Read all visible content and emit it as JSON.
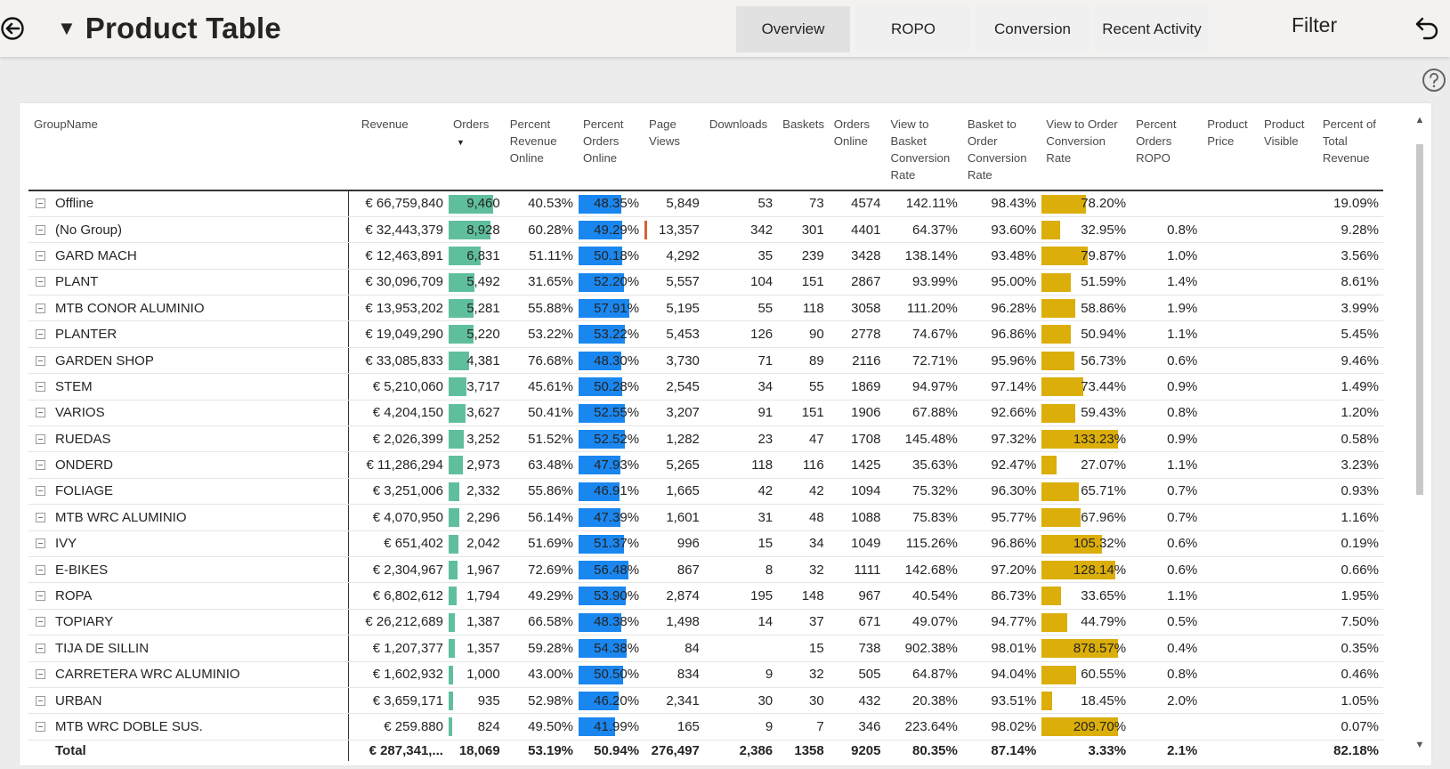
{
  "header": {
    "title": "Product Table",
    "tabs": [
      {
        "label": "Overview",
        "active": true
      },
      {
        "label": "ROPO",
        "active": false
      },
      {
        "label": "Conversion",
        "active": false
      },
      {
        "label": "Recent Activity",
        "active": false
      }
    ],
    "filter_label": "Filter"
  },
  "icons": {
    "back": "back-arrow-circle-icon",
    "title_caret": "caret-down-icon",
    "undo": "undo-arrow-icon",
    "help": "help-circle-icon"
  },
  "colors": {
    "orders_bar": "#5fbf9c",
    "percent_orders_online_bar": "#1a87f0",
    "view_to_order_bar": "#dcae0a",
    "page_views_bar": "#d2643a"
  },
  "table": {
    "columns": [
      "GroupName",
      "Revenue",
      "Orders",
      "Percent Revenue Online",
      "Percent Orders Online",
      "Page Views",
      "Downloads",
      "Baskets",
      "Orders Online",
      "View to Basket Conversion Rate",
      "Basket to Order Conversion Rate",
      "View to Order Conversion Rate",
      "Percent Orders ROPO",
      "Product Price",
      "Product Visible",
      "Percent of Total Revenue"
    ],
    "rows": [
      {
        "name": "Offline",
        "revenue": "€ 66,759,840",
        "orders": "9,460",
        "orders_val": 9460,
        "pro": "40.53%",
        "poo": "48.35%",
        "poo_val": 48.35,
        "pv": "5,849",
        "dl": "53",
        "bk": "73",
        "oo": "4574",
        "vtb": "142.11%",
        "bto": "98.43%",
        "vto": "78.20%",
        "vto_val": 78.2,
        "ropo": "",
        "price": "",
        "visible": "",
        "ptr": "19.09%"
      },
      {
        "name": "(No Group)",
        "revenue": "€ 32,443,379",
        "orders": "8,928",
        "orders_val": 8928,
        "pro": "60.28%",
        "poo": "49.29%",
        "poo_val": 49.29,
        "pv": "13,357",
        "pv_flag": true,
        "dl": "342",
        "bk": "301",
        "oo": "4401",
        "vtb": "64.37%",
        "bto": "93.60%",
        "vto": "32.95%",
        "vto_val": 32.95,
        "ropo": "0.8%",
        "price": "",
        "visible": "",
        "ptr": "9.28%"
      },
      {
        "name": "GARD MACH",
        "revenue": "€ 12,463,891",
        "orders": "6,831",
        "orders_val": 6831,
        "pro": "51.11%",
        "poo": "50.18%",
        "poo_val": 50.18,
        "pv": "4,292",
        "dl": "35",
        "bk": "239",
        "oo": "3428",
        "vtb": "138.14%",
        "bto": "93.48%",
        "vto": "79.87%",
        "vto_val": 79.87,
        "ropo": "1.0%",
        "price": "",
        "visible": "",
        "ptr": "3.56%"
      },
      {
        "name": "PLANT",
        "revenue": "€ 30,096,709",
        "orders": "5,492",
        "orders_val": 5492,
        "pro": "31.65%",
        "poo": "52.20%",
        "poo_val": 52.2,
        "pv": "5,557",
        "dl": "104",
        "bk": "151",
        "oo": "2867",
        "vtb": "93.99%",
        "bto": "95.00%",
        "vto": "51.59%",
        "vto_val": 51.59,
        "ropo": "1.4%",
        "price": "",
        "visible": "",
        "ptr": "8.61%"
      },
      {
        "name": "MTB CONOR ALUMINIO",
        "revenue": "€ 13,953,202",
        "orders": "5,281",
        "orders_val": 5281,
        "pro": "55.88%",
        "poo": "57.91%",
        "poo_val": 57.91,
        "pv": "5,195",
        "dl": "55",
        "bk": "118",
        "oo": "3058",
        "vtb": "111.20%",
        "bto": "96.28%",
        "vto": "58.86%",
        "vto_val": 58.86,
        "ropo": "1.9%",
        "price": "",
        "visible": "",
        "ptr": "3.99%"
      },
      {
        "name": "PLANTER",
        "revenue": "€ 19,049,290",
        "orders": "5,220",
        "orders_val": 5220,
        "pro": "53.22%",
        "poo": "53.22%",
        "poo_val": 53.22,
        "pv": "5,453",
        "dl": "126",
        "bk": "90",
        "oo": "2778",
        "vtb": "74.67%",
        "bto": "96.86%",
        "vto": "50.94%",
        "vto_val": 50.94,
        "ropo": "1.1%",
        "price": "",
        "visible": "",
        "ptr": "5.45%"
      },
      {
        "name": "GARDEN SHOP",
        "revenue": "€ 33,085,833",
        "orders": "4,381",
        "orders_val": 4381,
        "pro": "76.68%",
        "poo": "48.30%",
        "poo_val": 48.3,
        "pv": "3,730",
        "dl": "71",
        "bk": "89",
        "oo": "2116",
        "vtb": "72.71%",
        "bto": "95.96%",
        "vto": "56.73%",
        "vto_val": 56.73,
        "ropo": "0.6%",
        "price": "",
        "visible": "",
        "ptr": "9.46%"
      },
      {
        "name": "STEM",
        "revenue": "€ 5,210,060",
        "orders": "3,717",
        "orders_val": 3717,
        "pro": "45.61%",
        "poo": "50.28%",
        "poo_val": 50.28,
        "pv": "2,545",
        "dl": "34",
        "bk": "55",
        "oo": "1869",
        "vtb": "94.97%",
        "bto": "97.14%",
        "vto": "73.44%",
        "vto_val": 73.44,
        "ropo": "0.9%",
        "price": "",
        "visible": "",
        "ptr": "1.49%"
      },
      {
        "name": "VARIOS",
        "revenue": "€ 4,204,150",
        "orders": "3,627",
        "orders_val": 3627,
        "pro": "50.41%",
        "poo": "52.55%",
        "poo_val": 52.55,
        "pv": "3,207",
        "dl": "91",
        "bk": "151",
        "oo": "1906",
        "vtb": "67.88%",
        "bto": "92.66%",
        "vto": "59.43%",
        "vto_val": 59.43,
        "ropo": "0.8%",
        "price": "",
        "visible": "",
        "ptr": "1.20%"
      },
      {
        "name": "RUEDAS",
        "revenue": "€ 2,026,399",
        "orders": "3,252",
        "orders_val": 3252,
        "pro": "51.52%",
        "poo": "52.52%",
        "poo_val": 52.52,
        "pv": "1,282",
        "dl": "23",
        "bk": "47",
        "oo": "1708",
        "vtb": "145.48%",
        "bto": "97.32%",
        "vto": "133.23%",
        "vto_val": 133.23,
        "ropo": "0.9%",
        "price": "",
        "visible": "",
        "ptr": "0.58%"
      },
      {
        "name": "ONDERD",
        "revenue": "€ 11,286,294",
        "orders": "2,973",
        "orders_val": 2973,
        "pro": "63.48%",
        "poo": "47.93%",
        "poo_val": 47.93,
        "pv": "5,265",
        "dl": "118",
        "bk": "116",
        "oo": "1425",
        "vtb": "35.63%",
        "bto": "92.47%",
        "vto": "27.07%",
        "vto_val": 27.07,
        "ropo": "1.1%",
        "price": "",
        "visible": "",
        "ptr": "3.23%"
      },
      {
        "name": "FOLIAGE",
        "revenue": "€ 3,251,006",
        "orders": "2,332",
        "orders_val": 2332,
        "pro": "55.86%",
        "poo": "46.91%",
        "poo_val": 46.91,
        "pv": "1,665",
        "dl": "42",
        "bk": "42",
        "oo": "1094",
        "vtb": "75.32%",
        "bto": "96.30%",
        "vto": "65.71%",
        "vto_val": 65.71,
        "ropo": "0.7%",
        "price": "",
        "visible": "",
        "ptr": "0.93%"
      },
      {
        "name": "MTB WRC ALUMINIO",
        "revenue": "€ 4,070,950",
        "orders": "2,296",
        "orders_val": 2296,
        "pro": "56.14%",
        "poo": "47.39%",
        "poo_val": 47.39,
        "pv": "1,601",
        "dl": "31",
        "bk": "48",
        "oo": "1088",
        "vtb": "75.83%",
        "bto": "95.77%",
        "vto": "67.96%",
        "vto_val": 67.96,
        "ropo": "0.7%",
        "price": "",
        "visible": "",
        "ptr": "1.16%"
      },
      {
        "name": "IVY",
        "revenue": "€ 651,402",
        "orders": "2,042",
        "orders_val": 2042,
        "pro": "51.69%",
        "poo": "51.37%",
        "poo_val": 51.37,
        "pv": "996",
        "dl": "15",
        "bk": "34",
        "oo": "1049",
        "vtb": "115.26%",
        "bto": "96.86%",
        "vto": "105.32%",
        "vto_val": 105.32,
        "ropo": "0.6%",
        "price": "",
        "visible": "",
        "ptr": "0.19%"
      },
      {
        "name": "E-BIKES",
        "revenue": "€ 2,304,967",
        "orders": "1,967",
        "orders_val": 1967,
        "pro": "72.69%",
        "poo": "56.48%",
        "poo_val": 56.48,
        "pv": "867",
        "dl": "8",
        "bk": "32",
        "oo": "1111",
        "vtb": "142.68%",
        "bto": "97.20%",
        "vto": "128.14%",
        "vto_val": 128.14,
        "ropo": "0.6%",
        "price": "",
        "visible": "",
        "ptr": "0.66%"
      },
      {
        "name": "ROPA",
        "revenue": "€ 6,802,612",
        "orders": "1,794",
        "orders_val": 1794,
        "pro": "49.29%",
        "poo": "53.90%",
        "poo_val": 53.9,
        "pv": "2,874",
        "dl": "195",
        "bk": "148",
        "oo": "967",
        "vtb": "40.54%",
        "bto": "86.73%",
        "vto": "33.65%",
        "vto_val": 33.65,
        "ropo": "1.1%",
        "price": "",
        "visible": "",
        "ptr": "1.95%"
      },
      {
        "name": "TOPIARY",
        "revenue": "€ 26,212,689",
        "orders": "1,387",
        "orders_val": 1387,
        "pro": "66.58%",
        "poo": "48.38%",
        "poo_val": 48.38,
        "pv": "1,498",
        "dl": "14",
        "bk": "37",
        "oo": "671",
        "vtb": "49.07%",
        "bto": "94.77%",
        "vto": "44.79%",
        "vto_val": 44.79,
        "ropo": "0.5%",
        "price": "",
        "visible": "",
        "ptr": "7.50%"
      },
      {
        "name": "TIJA DE SILLIN",
        "revenue": "€ 1,207,377",
        "orders": "1,357",
        "orders_val": 1357,
        "pro": "59.28%",
        "poo": "54.38%",
        "poo_val": 54.38,
        "pv": "84",
        "dl": "",
        "bk": "15",
        "oo": "738",
        "vtb": "902.38%",
        "bto": "98.01%",
        "vto": "878.57%",
        "vto_val": 878.57,
        "ropo": "0.4%",
        "price": "",
        "visible": "",
        "ptr": "0.35%"
      },
      {
        "name": "CARRETERA WRC ALUMINIO",
        "revenue": "€ 1,602,932",
        "orders": "1,000",
        "orders_val": 1000,
        "pro": "43.00%",
        "poo": "50.50%",
        "poo_val": 50.5,
        "pv": "834",
        "dl": "9",
        "bk": "32",
        "oo": "505",
        "vtb": "64.87%",
        "bto": "94.04%",
        "vto": "60.55%",
        "vto_val": 60.55,
        "ropo": "0.8%",
        "price": "",
        "visible": "",
        "ptr": "0.46%"
      },
      {
        "name": "URBAN",
        "revenue": "€ 3,659,171",
        "orders": "935",
        "orders_val": 935,
        "pro": "52.98%",
        "poo": "46.20%",
        "poo_val": 46.2,
        "pv": "2,341",
        "dl": "30",
        "bk": "30",
        "oo": "432",
        "vtb": "20.38%",
        "bto": "93.51%",
        "vto": "18.45%",
        "vto_val": 18.45,
        "ropo": "2.0%",
        "price": "",
        "visible": "",
        "ptr": "1.05%"
      },
      {
        "name": "MTB WRC DOBLE SUS.",
        "revenue": "€ 259.880",
        "orders": "824",
        "orders_val": 824,
        "pro": "49.50%",
        "poo": "41.99%",
        "poo_val": 41.99,
        "pv": "165",
        "dl": "9",
        "bk": "7",
        "oo": "346",
        "vtb": "223.64%",
        "bto": "98.02%",
        "vto": "209.70%",
        "vto_val": 209.7,
        "ropo": "",
        "price": "",
        "visible": "",
        "ptr": "0.07%"
      }
    ],
    "total": {
      "name": "Total",
      "revenue": "€ 287,341,...",
      "orders": "18,069",
      "pro": "53.19%",
      "poo": "50.94%",
      "pv": "276,497",
      "dl": "2,386",
      "bk": "1358",
      "oo": "9205",
      "vtb": "80.35%",
      "bto": "87.14%",
      "vto": "3.33%",
      "ropo": "2.1%",
      "price": "",
      "visible": "",
      "ptr": "82.18%"
    }
  }
}
